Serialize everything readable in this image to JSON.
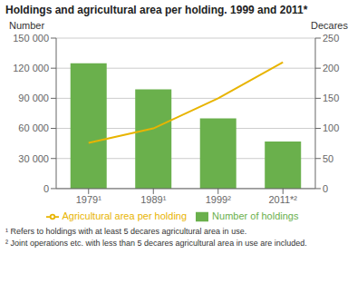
{
  "chart_data": {
    "type": "bar",
    "title": "Holdings and agricultural area per holding. 1999 and 2011*",
    "categories": [
      "1979¹",
      "1989¹",
      "1999²",
      "2011*²"
    ],
    "series": [
      {
        "name": "Number of holdings",
        "type": "bar",
        "color": "#6ab04c",
        "values": [
          125000,
          99000,
          70000,
          47000
        ]
      },
      {
        "name": "Agricultural area per holding",
        "type": "line",
        "axis": "y2",
        "color": "#e8b400",
        "values": [
          76,
          100,
          150,
          210
        ]
      }
    ],
    "ylabel": "Number",
    "y2label": "Decares",
    "ylim": [
      0,
      150000
    ],
    "yticks": [
      0,
      {
        "value": 30000,
        "label": "30 000"
      },
      {
        "value": 60000,
        "label": "60 000"
      },
      {
        "value": 90000,
        "label": "90 000"
      },
      {
        "value": 120000,
        "label": "120 000"
      },
      {
        "value": 150000,
        "label": "150 000"
      }
    ],
    "y2lim": [
      0,
      250
    ],
    "y2ticks": [
      0,
      50,
      100,
      150,
      200,
      250
    ],
    "grid": true,
    "legend": "bottom",
    "annotations": [
      "¹ Refers to holdings with at least 5 decares agricultural area in use.",
      "² Joint operations etc. with less than 5 decares agricultural area in use are included."
    ]
  }
}
